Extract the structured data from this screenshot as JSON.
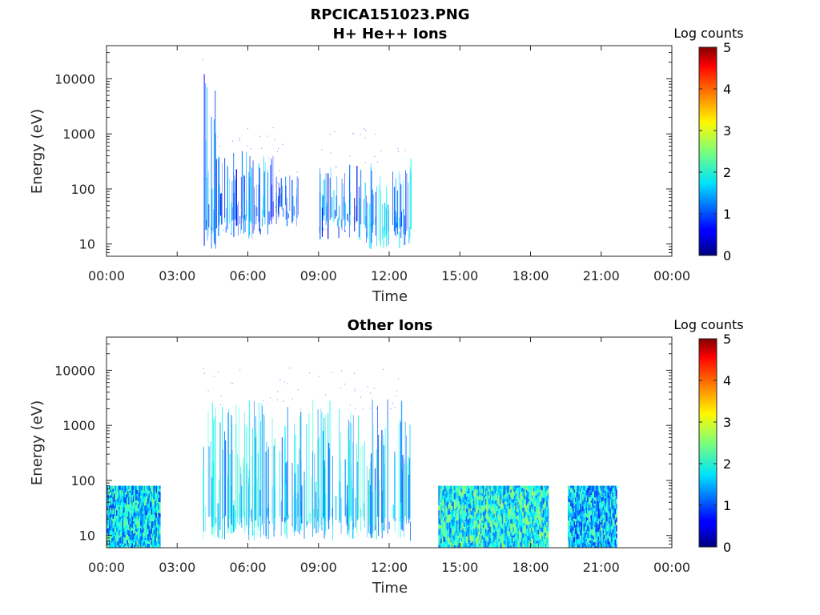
{
  "figure": {
    "title": "RPCICA151023.PNG"
  },
  "chart_data": [
    {
      "type": "heatmap",
      "title": "H+ He++ Ions",
      "xlabel": "Time",
      "ylabel": "Energy (eV)",
      "yscale": "log",
      "xlim_hours": [
        0,
        24
      ],
      "ylim": [
        6,
        40000
      ],
      "x_ticks": [
        "00:00",
        "03:00",
        "06:00",
        "09:00",
        "12:00",
        "15:00",
        "18:00",
        "21:00",
        "00:00"
      ],
      "y_ticks": [
        {
          "value": 10,
          "label": "10"
        },
        {
          "value": 100,
          "label": "100"
        },
        {
          "value": 1000,
          "label": "1000"
        },
        {
          "value": 10000,
          "label": "10000"
        }
      ],
      "colorbar": {
        "label": "Log counts",
        "range": [
          0,
          5
        ],
        "ticks": [
          "0",
          "1",
          "2",
          "3",
          "4",
          "5"
        ],
        "colormap": "jet"
      },
      "activity": [
        {
          "start": "04:05",
          "end": "04:40",
          "e_min": 10,
          "e_max": 20000,
          "intensity": 1.0
        },
        {
          "start": "04:40",
          "end": "06:10",
          "e_min": 15,
          "e_max": 500,
          "intensity": 1.2
        },
        {
          "start": "06:10",
          "end": "07:10",
          "e_min": 15,
          "e_max": 400,
          "intensity": 1.1
        },
        {
          "start": "07:10",
          "end": "08:10",
          "e_min": 25,
          "e_max": 200,
          "intensity": 0.8
        },
        {
          "start": "09:00",
          "end": "10:40",
          "e_min": 15,
          "e_max": 300,
          "intensity": 1.1
        },
        {
          "start": "10:40",
          "end": "12:55",
          "e_min": 10,
          "e_max": 400,
          "intensity": 1.4
        }
      ]
    },
    {
      "type": "heatmap",
      "title": "Other Ions",
      "xlabel": "Time",
      "ylabel": "Energy (eV)",
      "yscale": "log",
      "xlim_hours": [
        0,
        24
      ],
      "ylim": [
        6,
        40000
      ],
      "x_ticks": [
        "00:00",
        "03:00",
        "06:00",
        "09:00",
        "12:00",
        "15:00",
        "18:00",
        "21:00",
        "00:00"
      ],
      "y_ticks": [
        {
          "value": 10,
          "label": "10"
        },
        {
          "value": 100,
          "label": "100"
        },
        {
          "value": 1000,
          "label": "1000"
        },
        {
          "value": 10000,
          "label": "10000"
        }
      ],
      "colorbar": {
        "label": "Log counts",
        "range": [
          0,
          5
        ],
        "ticks": [
          "0",
          "1",
          "2",
          "3",
          "4",
          "5"
        ],
        "colormap": "jet"
      },
      "activity": [
        {
          "start": "00:00",
          "end": "02:15",
          "e_min": 6,
          "e_max": 80,
          "intensity": 1.7,
          "dense": true
        },
        {
          "start": "04:05",
          "end": "12:55",
          "e_min": 10,
          "e_max": 3000,
          "intensity": 1.6
        },
        {
          "start": "14:05",
          "end": "18:45",
          "e_min": 6,
          "e_max": 80,
          "intensity": 1.9,
          "dense": true
        },
        {
          "start": "19:35",
          "end": "21:40",
          "e_min": 6,
          "e_max": 80,
          "intensity": 1.6,
          "dense": true
        }
      ]
    }
  ]
}
